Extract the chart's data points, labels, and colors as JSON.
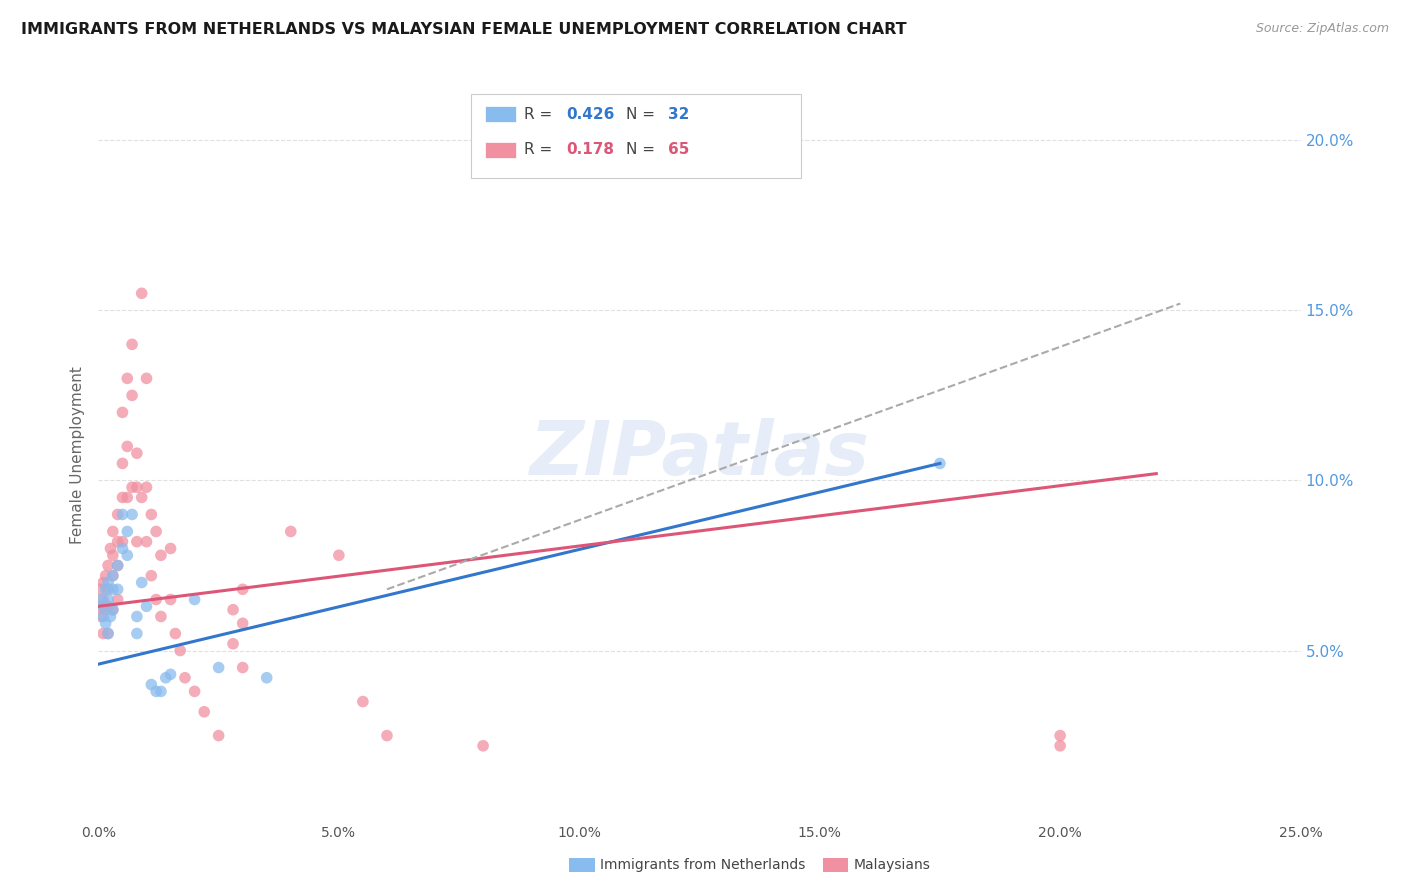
{
  "title": "IMMIGRANTS FROM NETHERLANDS VS MALAYSIAN FEMALE UNEMPLOYMENT CORRELATION CHART",
  "source": "Source: ZipAtlas.com",
  "ylabel": "Female Unemployment",
  "xlim": [
    0,
    0.25
  ],
  "ylim": [
    0,
    0.215
  ],
  "xticks": [
    0.0,
    0.05,
    0.1,
    0.15,
    0.2,
    0.25
  ],
  "xtick_labels": [
    "0.0%",
    "5.0%",
    "10.0%",
    "15.0%",
    "20.0%",
    "25.0%"
  ],
  "yticks_right": [
    0.05,
    0.1,
    0.15,
    0.2
  ],
  "ytick_labels_right": [
    "5.0%",
    "10.0%",
    "15.0%",
    "20.0%"
  ],
  "blue_color": "#88bbee",
  "pink_color": "#f090a0",
  "blue_line_color": "#3377cc",
  "pink_line_color": "#dd5577",
  "right_axis_color": "#5599dd",
  "watermark": "ZIPatlas",
  "blue_scatter_x": [
    0.0005,
    0.001,
    0.001,
    0.0015,
    0.0015,
    0.002,
    0.002,
    0.002,
    0.0025,
    0.003,
    0.003,
    0.003,
    0.004,
    0.004,
    0.005,
    0.005,
    0.006,
    0.006,
    0.007,
    0.008,
    0.008,
    0.009,
    0.01,
    0.011,
    0.012,
    0.013,
    0.014,
    0.015,
    0.02,
    0.025,
    0.035,
    0.175
  ],
  "blue_scatter_y": [
    0.065,
    0.063,
    0.06,
    0.068,
    0.058,
    0.07,
    0.065,
    0.055,
    0.06,
    0.072,
    0.068,
    0.062,
    0.075,
    0.068,
    0.09,
    0.08,
    0.085,
    0.078,
    0.09,
    0.06,
    0.055,
    0.07,
    0.063,
    0.04,
    0.038,
    0.038,
    0.042,
    0.043,
    0.065,
    0.045,
    0.042,
    0.105
  ],
  "pink_scatter_x": [
    0.0003,
    0.0005,
    0.0005,
    0.001,
    0.001,
    0.001,
    0.0015,
    0.0015,
    0.002,
    0.002,
    0.002,
    0.002,
    0.0025,
    0.003,
    0.003,
    0.003,
    0.003,
    0.004,
    0.004,
    0.004,
    0.004,
    0.005,
    0.005,
    0.005,
    0.005,
    0.006,
    0.006,
    0.006,
    0.007,
    0.007,
    0.007,
    0.008,
    0.008,
    0.008,
    0.009,
    0.009,
    0.01,
    0.01,
    0.01,
    0.011,
    0.011,
    0.012,
    0.012,
    0.013,
    0.013,
    0.015,
    0.015,
    0.016,
    0.017,
    0.018,
    0.02,
    0.022,
    0.025,
    0.028,
    0.028,
    0.03,
    0.03,
    0.03,
    0.04,
    0.05,
    0.055,
    0.06,
    0.08,
    0.2,
    0.2
  ],
  "pink_scatter_y": [
    0.068,
    0.063,
    0.06,
    0.07,
    0.065,
    0.055,
    0.072,
    0.062,
    0.075,
    0.068,
    0.063,
    0.055,
    0.08,
    0.085,
    0.078,
    0.072,
    0.062,
    0.09,
    0.082,
    0.075,
    0.065,
    0.12,
    0.105,
    0.095,
    0.082,
    0.13,
    0.11,
    0.095,
    0.14,
    0.125,
    0.098,
    0.108,
    0.098,
    0.082,
    0.155,
    0.095,
    0.13,
    0.098,
    0.082,
    0.09,
    0.072,
    0.085,
    0.065,
    0.078,
    0.06,
    0.08,
    0.065,
    0.055,
    0.05,
    0.042,
    0.038,
    0.032,
    0.025,
    0.062,
    0.052,
    0.068,
    0.058,
    0.045,
    0.085,
    0.078,
    0.035,
    0.025,
    0.022,
    0.025,
    0.022
  ],
  "blue_trend_x": [
    0.0,
    0.175
  ],
  "blue_trend_y": [
    0.046,
    0.105
  ],
  "pink_trend_x": [
    0.0,
    0.22
  ],
  "pink_trend_y": [
    0.063,
    0.102
  ],
  "dash_trend_x": [
    0.06,
    0.225
  ],
  "dash_trend_y": [
    0.068,
    0.152
  ],
  "background_color": "#ffffff",
  "grid_color": "#e0e0e0"
}
